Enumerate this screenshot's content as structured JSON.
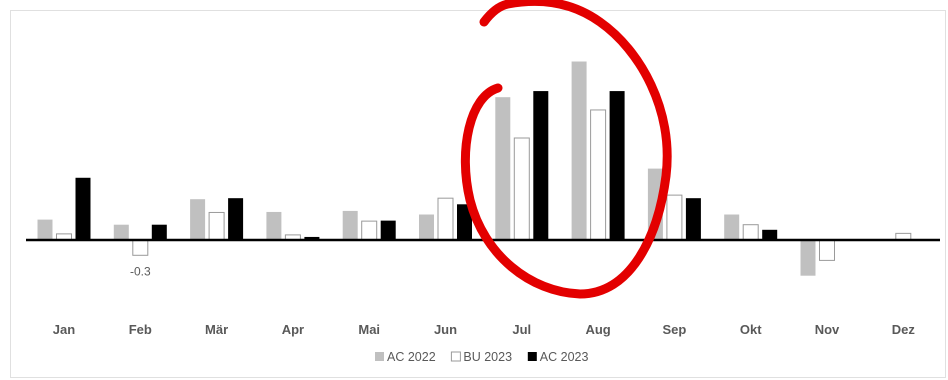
{
  "chart_data": {
    "type": "bar",
    "categories": [
      "Jan",
      "Feb",
      "Mär",
      "Apr",
      "Mai",
      "Jun",
      "Jul",
      "Aug",
      "Sep",
      "Okt",
      "Nov",
      "Dez"
    ],
    "series": [
      {
        "name": "AC 2022",
        "color": "#c0c0c0",
        "stroke": "#c0c0c0",
        "values": [
          0.4,
          0.3,
          0.8,
          0.55,
          0.57,
          0.5,
          2.8,
          3.5,
          1.4,
          0.5,
          -0.7,
          null
        ]
      },
      {
        "name": "BU 2023",
        "color": "#ffffff",
        "stroke": "#9a9a9a",
        "values": [
          0.12,
          -0.3,
          0.54,
          0.1,
          0.37,
          0.82,
          2.0,
          2.55,
          0.88,
          0.3,
          -0.4,
          0.13
        ]
      },
      {
        "name": "AC 2023",
        "color": "#000000",
        "stroke": "#000000",
        "values": [
          1.22,
          0.3,
          0.82,
          0.06,
          0.38,
          0.7,
          2.92,
          2.92,
          0.82,
          0.2,
          null,
          null
        ]
      }
    ],
    "data_labels": [
      {
        "category": "Feb",
        "series": "BU 2023",
        "text": "-0.3"
      }
    ],
    "ylim": [
      -1.6,
      4.6
    ],
    "grid": false,
    "legend": "bottom-center",
    "annotation": {
      "type": "hand-drawn circle",
      "color": "#e00000",
      "around": [
        "Jul",
        "Aug"
      ]
    }
  }
}
